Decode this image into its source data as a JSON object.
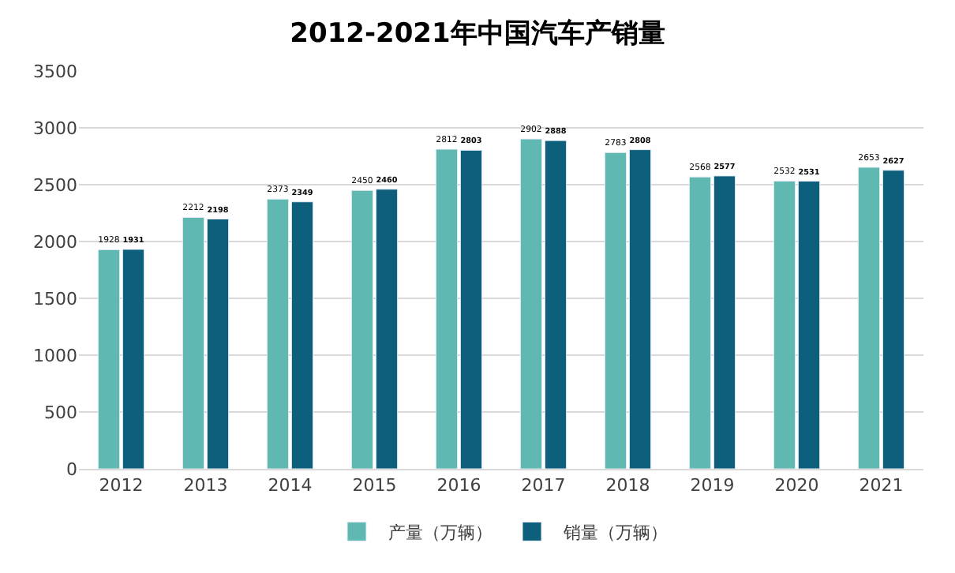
{
  "chart_data": {
    "type": "bar",
    "title": "2012-2021年中国汽车产销量",
    "categories": [
      "2012",
      "2013",
      "2014",
      "2015",
      "2016",
      "2017",
      "2018",
      "2019",
      "2020",
      "2021"
    ],
    "series": [
      {
        "name": "产量（万辆）",
        "color": "#5fb8b2",
        "values": [
          1928,
          2212,
          2373,
          2450,
          2812,
          2902,
          2783,
          2568,
          2532,
          2653
        ]
      },
      {
        "name": "销量（万辆）",
        "color": "#0d5f7c",
        "values": [
          1931,
          2198,
          2349,
          2460,
          2803,
          2888,
          2808,
          2577,
          2531,
          2627
        ]
      }
    ],
    "ylim": [
      0,
      3500
    ],
    "yticks": [
      0,
      500,
      1000,
      1500,
      2000,
      2500,
      3000,
      3500
    ],
    "grid": "y",
    "legend": "bottom",
    "data_labels": true
  }
}
